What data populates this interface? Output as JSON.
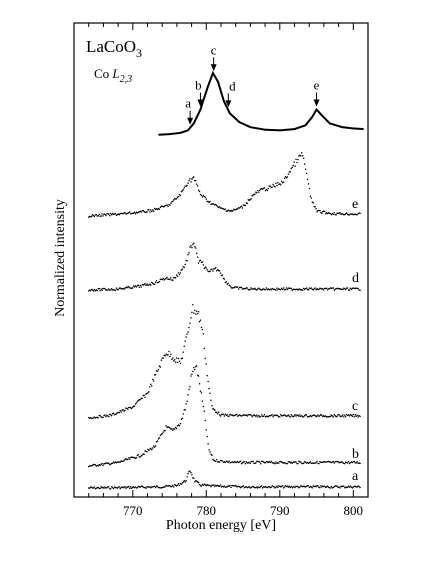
{
  "chart_data": {
    "type": "scatter",
    "title": "LaCoO3",
    "subtitle": "Co L2,3",
    "xlabel": "Photon energy [eV]",
    "ylabel": "Normalized intensity",
    "xlim": [
      762,
      802
    ],
    "x_ticks": [
      770,
      780,
      790,
      800
    ],
    "x_tick_labels": [
      "770",
      "780",
      "790",
      "800"
    ],
    "y_ticks": "none",
    "grid": false,
    "absorption_spectrum": {
      "style": "solid-line",
      "markers": [
        {
          "label": "a",
          "energy": 777.8
        },
        {
          "label": "b",
          "energy": 779.2
        },
        {
          "label": "c",
          "energy": 781.0
        },
        {
          "label": "d",
          "energy": 783.0
        },
        {
          "label": "e",
          "energy": 795.0
        }
      ],
      "points": [
        [
          773.5,
          0.02
        ],
        [
          775,
          0.03
        ],
        [
          776.5,
          0.05
        ],
        [
          777.5,
          0.09
        ],
        [
          778.3,
          0.2
        ],
        [
          779.2,
          0.42
        ],
        [
          780.2,
          0.78
        ],
        [
          780.9,
          1.0
        ],
        [
          781.6,
          0.86
        ],
        [
          782.4,
          0.55
        ],
        [
          783.2,
          0.36
        ],
        [
          784.5,
          0.22
        ],
        [
          786,
          0.14
        ],
        [
          788,
          0.1
        ],
        [
          790,
          0.09
        ],
        [
          792,
          0.11
        ],
        [
          793.5,
          0.17
        ],
        [
          794.4,
          0.3
        ],
        [
          795,
          0.42
        ],
        [
          795.7,
          0.33
        ],
        [
          796.8,
          0.2
        ],
        [
          798.5,
          0.14
        ],
        [
          800,
          0.12
        ],
        [
          801.5,
          0.11
        ]
      ]
    },
    "series": [
      {
        "name": "a",
        "style": "dots",
        "points": [
          [
            764,
            0
          ],
          [
            770,
            0.01
          ],
          [
            774,
            0.02
          ],
          [
            776,
            0.04
          ],
          [
            777.2,
            0.12
          ],
          [
            777.8,
            0.3
          ],
          [
            778.4,
            0.12
          ],
          [
            779.2,
            0.05
          ],
          [
            781,
            0.03
          ],
          [
            786,
            0.02
          ],
          [
            792,
            0.02
          ],
          [
            801,
            0.02
          ]
        ]
      },
      {
        "name": "b",
        "style": "dots",
        "points": [
          [
            764,
            0
          ],
          [
            768,
            0.05
          ],
          [
            771,
            0.15
          ],
          [
            773,
            0.28
          ],
          [
            774.5,
            0.55
          ],
          [
            775.5,
            0.5
          ],
          [
            776.5,
            0.62
          ],
          [
            777.3,
            0.88
          ],
          [
            778,
            1.3
          ],
          [
            778.6,
            1.45
          ],
          [
            779.2,
            1.1
          ],
          [
            779.8,
            0.7
          ],
          [
            780.3,
            0.25
          ],
          [
            781,
            0.08
          ],
          [
            784,
            0.05
          ],
          [
            790,
            0.05
          ],
          [
            801,
            0.05
          ]
        ]
      },
      {
        "name": "c",
        "style": "dots",
        "points": [
          [
            764,
            0
          ],
          [
            767,
            0.05
          ],
          [
            770,
            0.2
          ],
          [
            772,
            0.45
          ],
          [
            773.5,
            0.9
          ],
          [
            774.5,
            1.2
          ],
          [
            775.5,
            1.1
          ],
          [
            776.5,
            1.0
          ],
          [
            777.4,
            1.5
          ],
          [
            778.1,
            2.0
          ],
          [
            778.9,
            1.9
          ],
          [
            779.5,
            1.6
          ],
          [
            780.2,
            0.7
          ],
          [
            780.8,
            0.18
          ],
          [
            782,
            0.05
          ],
          [
            788,
            0.04
          ],
          [
            801,
            0.04
          ]
        ]
      },
      {
        "name": "d",
        "style": "dots",
        "points": [
          [
            764,
            0
          ],
          [
            768,
            0.02
          ],
          [
            771,
            0.08
          ],
          [
            773,
            0.15
          ],
          [
            774.5,
            0.25
          ],
          [
            775.5,
            0.22
          ],
          [
            776.5,
            0.38
          ],
          [
            777.2,
            0.55
          ],
          [
            777.8,
            0.85
          ],
          [
            778.3,
            1.0
          ],
          [
            778.9,
            0.6
          ],
          [
            779.5,
            0.55
          ],
          [
            780.3,
            0.35
          ],
          [
            781.1,
            0.45
          ],
          [
            781.8,
            0.42
          ],
          [
            782.5,
            0.2
          ],
          [
            783.5,
            0.05
          ],
          [
            786,
            0.02
          ],
          [
            801,
            0.02
          ]
        ]
      },
      {
        "name": "e",
        "style": "dots",
        "points": [
          [
            764,
            0
          ],
          [
            768,
            0.03
          ],
          [
            771,
            0.06
          ],
          [
            773,
            0.1
          ],
          [
            775,
            0.18
          ],
          [
            776.5,
            0.35
          ],
          [
            777.5,
            0.55
          ],
          [
            778.3,
            0.62
          ],
          [
            779.2,
            0.35
          ],
          [
            780.5,
            0.22
          ],
          [
            782,
            0.12
          ],
          [
            783.5,
            0.08
          ],
          [
            785,
            0.15
          ],
          [
            786.5,
            0.35
          ],
          [
            787.5,
            0.42
          ],
          [
            788.5,
            0.45
          ],
          [
            789.5,
            0.5
          ],
          [
            790.5,
            0.55
          ],
          [
            791.5,
            0.75
          ],
          [
            792.5,
            0.92
          ],
          [
            793.1,
            1.0
          ],
          [
            793.6,
            0.7
          ],
          [
            794.2,
            0.3
          ],
          [
            795,
            0.08
          ],
          [
            797,
            0.04
          ],
          [
            801,
            0.03
          ]
        ]
      }
    ]
  }
}
